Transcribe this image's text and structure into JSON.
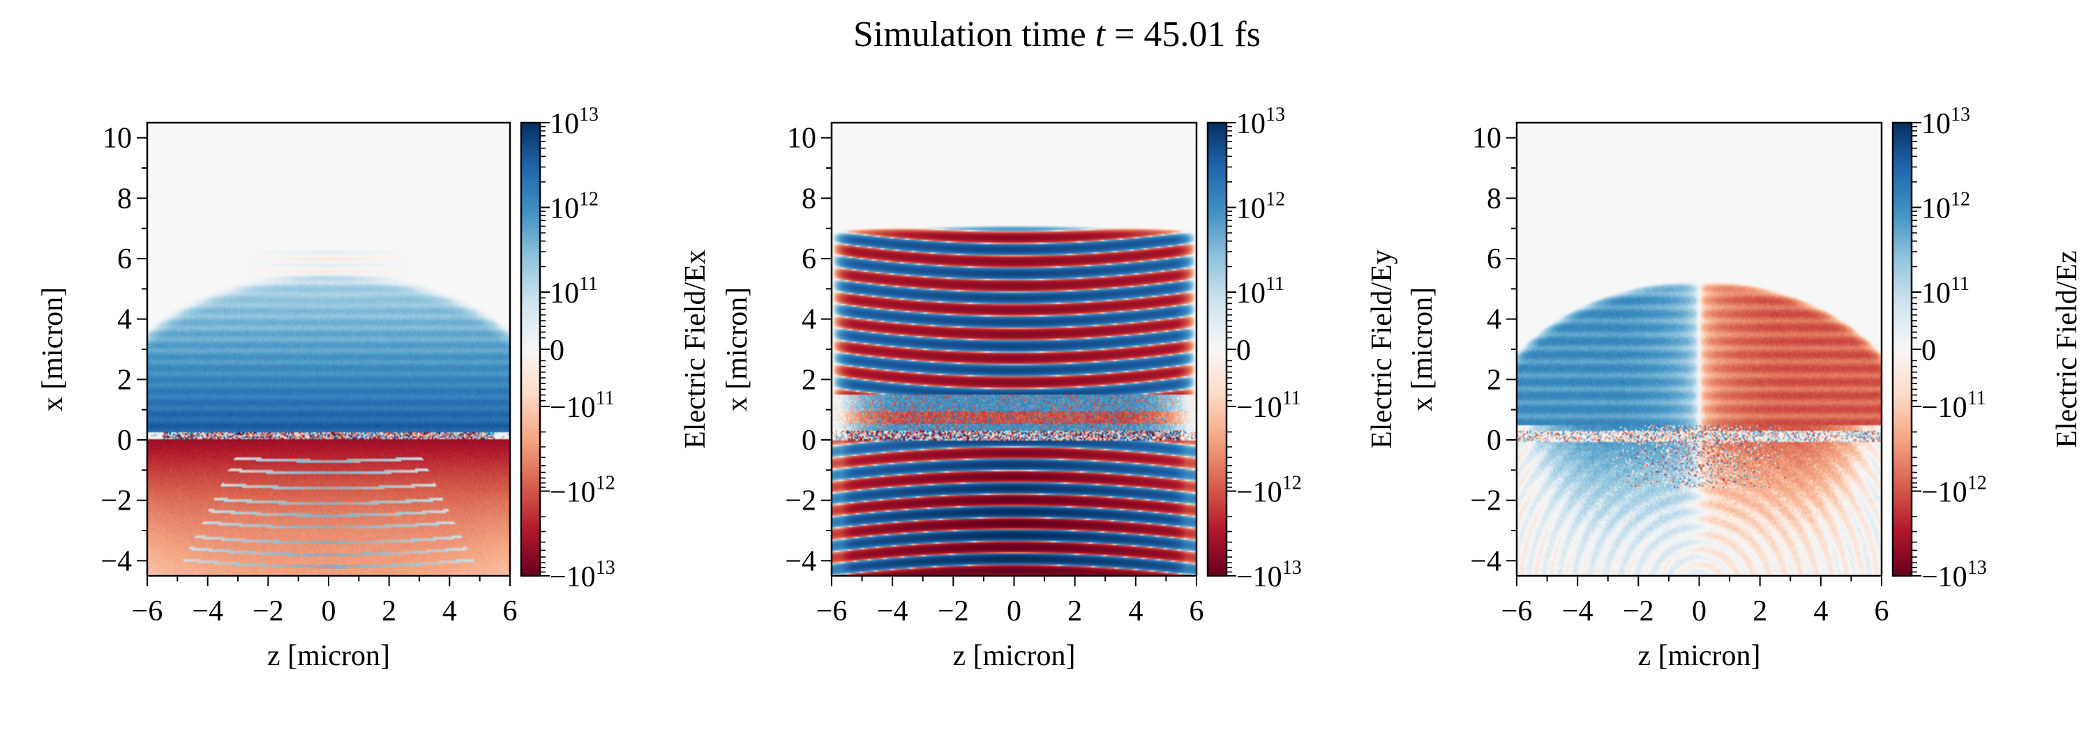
{
  "figure": {
    "title": {
      "text": "Simulation time",
      "variable": "t",
      "value": "= 45.01 fs"
    }
  },
  "chart_data": [
    {
      "type": "heatmap",
      "field": "Ex",
      "xlabel": "z [micron]",
      "ylabel": "x [micron]",
      "xlim": [
        -6,
        6
      ],
      "ylim": [
        -4.5,
        10.5
      ],
      "xticks": [
        -6,
        -4,
        -2,
        0,
        2,
        4,
        6
      ],
      "xtick_labels": [
        "−6",
        "−4",
        "−2",
        "0",
        "2",
        "4",
        "6"
      ],
      "yticks": [
        -4,
        -2,
        0,
        2,
        4,
        6,
        8,
        10
      ],
      "ytick_labels": [
        "−4",
        "−2",
        "0",
        "2",
        "4",
        "6",
        "8",
        "10"
      ],
      "colorbar": {
        "label": "Electric Field/Ex",
        "scale": "symlog",
        "colormap": "RdBu",
        "range": [
          -10000000000000.0,
          10000000000000.0
        ],
        "linthresh": 100000000000.0,
        "ticks": [
          10000000000000.0,
          1000000000000.0,
          100000000000.0,
          0,
          -100000000000.0,
          -1000000000000.0,
          -10000000000000.0
        ],
        "tick_labels": [
          {
            "base": "10",
            "exp": "13"
          },
          {
            "base": "10",
            "exp": "12"
          },
          {
            "base": "10",
            "exp": "11"
          },
          {
            "base": "0",
            "exp": ""
          },
          {
            "base": "−10",
            "exp": "11"
          },
          {
            "base": "−10",
            "exp": "12"
          },
          {
            "base": "−10",
            "exp": "13"
          }
        ]
      }
    },
    {
      "type": "heatmap",
      "field": "Ey",
      "xlabel": "z [micron]",
      "ylabel": "x [micron]",
      "xlim": [
        -6,
        6
      ],
      "ylim": [
        -4.5,
        10.5
      ],
      "xticks": [
        -6,
        -4,
        -2,
        0,
        2,
        4,
        6
      ],
      "xtick_labels": [
        "−6",
        "−4",
        "−2",
        "0",
        "2",
        "4",
        "6"
      ],
      "yticks": [
        -4,
        -2,
        0,
        2,
        4,
        6,
        8,
        10
      ],
      "ytick_labels": [
        "−4",
        "−2",
        "0",
        "2",
        "4",
        "6",
        "8",
        "10"
      ],
      "colorbar": {
        "label": "Electric Field/Ey",
        "scale": "symlog",
        "colormap": "RdBu",
        "range": [
          -10000000000000.0,
          10000000000000.0
        ],
        "linthresh": 100000000000.0,
        "ticks": [
          10000000000000.0,
          1000000000000.0,
          100000000000.0,
          0,
          -100000000000.0,
          -1000000000000.0,
          -10000000000000.0
        ],
        "tick_labels": [
          {
            "base": "10",
            "exp": "13"
          },
          {
            "base": "10",
            "exp": "12"
          },
          {
            "base": "10",
            "exp": "11"
          },
          {
            "base": "0",
            "exp": ""
          },
          {
            "base": "−10",
            "exp": "11"
          },
          {
            "base": "−10",
            "exp": "12"
          },
          {
            "base": "−10",
            "exp": "13"
          }
        ]
      }
    },
    {
      "type": "heatmap",
      "field": "Ez",
      "xlabel": "z [micron]",
      "ylabel": "x [micron]",
      "xlim": [
        -6,
        6
      ],
      "ylim": [
        -4.5,
        10.5
      ],
      "xticks": [
        -6,
        -4,
        -2,
        0,
        2,
        4,
        6
      ],
      "xtick_labels": [
        "−6",
        "−4",
        "−2",
        "0",
        "2",
        "4",
        "6"
      ],
      "yticks": [
        -4,
        -2,
        0,
        2,
        4,
        6,
        8,
        10
      ],
      "ytick_labels": [
        "−4",
        "−2",
        "0",
        "2",
        "4",
        "6",
        "8",
        "10"
      ],
      "colorbar": {
        "label": "Electric Field/Ez",
        "scale": "symlog",
        "colormap": "RdBu",
        "range": [
          -10000000000000.0,
          10000000000000.0
        ],
        "linthresh": 100000000000.0,
        "ticks": [
          10000000000000.0,
          1000000000000.0,
          100000000000.0,
          0,
          -100000000000.0,
          -1000000000000.0,
          -10000000000000.0
        ],
        "tick_labels": [
          {
            "base": "10",
            "exp": "13"
          },
          {
            "base": "10",
            "exp": "12"
          },
          {
            "base": "10",
            "exp": "11"
          },
          {
            "base": "0",
            "exp": ""
          },
          {
            "base": "−10",
            "exp": "11"
          },
          {
            "base": "−10",
            "exp": "12"
          },
          {
            "base": "−10",
            "exp": "13"
          }
        ]
      }
    }
  ]
}
